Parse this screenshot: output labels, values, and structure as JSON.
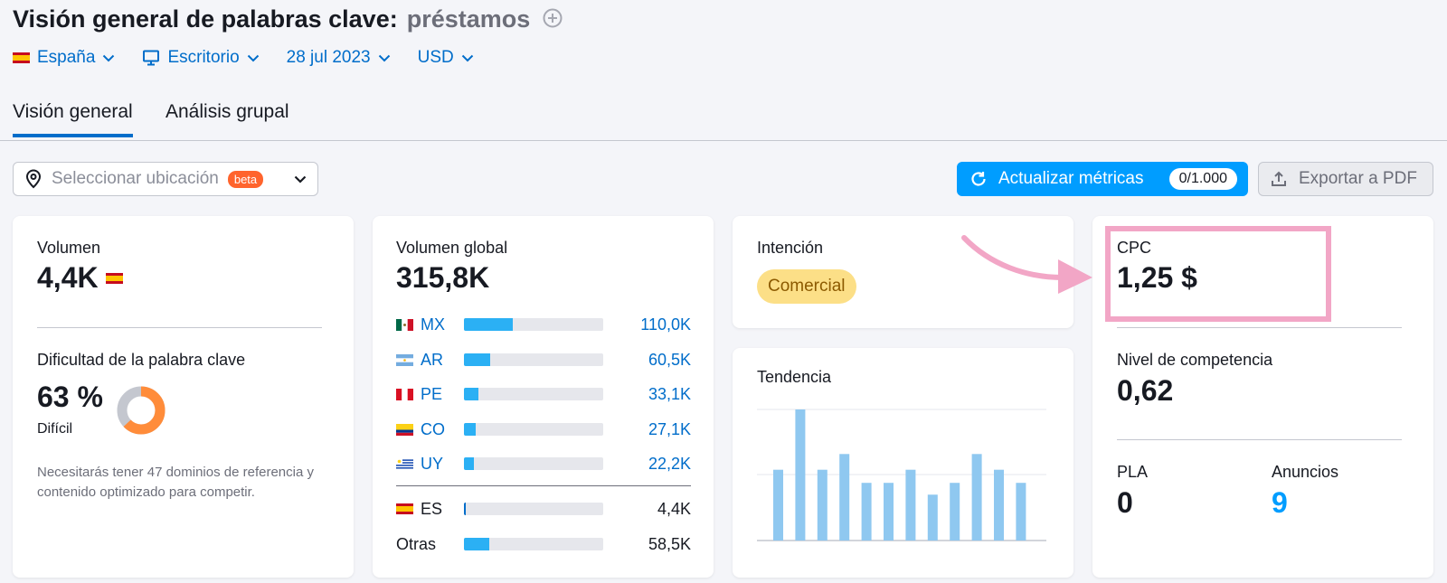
{
  "header": {
    "title": "Visión general de palabras clave:",
    "keyword": "préstamos"
  },
  "filters": {
    "country": "España",
    "device": "Escritorio",
    "date": "28 jul 2023",
    "currency": "USD"
  },
  "tabs": [
    {
      "label": "Visión general",
      "active": true
    },
    {
      "label": "Análisis grupal",
      "active": false
    }
  ],
  "location": {
    "placeholder": "Seleccionar ubicación",
    "badge": "beta"
  },
  "actions": {
    "update_label": "Actualizar métricas",
    "update_count": "0/1.000",
    "export_label": "Exportar a PDF"
  },
  "volume": {
    "label": "Volumen",
    "value": "4,4K"
  },
  "difficulty": {
    "label": "Dificultad de la palabra clave",
    "value": "63 %",
    "level": "Difícil",
    "percent": 63,
    "description": "Necesitarás tener 47 dominios de referencia y contenido optimizado para competir."
  },
  "global_volume": {
    "label": "Volumen global",
    "value": "315,8K",
    "countries": [
      {
        "code": "MX",
        "value": "110,0K",
        "share": 0.35
      },
      {
        "code": "AR",
        "value": "60,5K",
        "share": 0.19
      },
      {
        "code": "PE",
        "value": "33,1K",
        "share": 0.105
      },
      {
        "code": "CO",
        "value": "27,1K",
        "share": 0.085
      },
      {
        "code": "UY",
        "value": "22,2K",
        "share": 0.07
      }
    ],
    "local": {
      "code": "ES",
      "value": "4,4K",
      "share": 0.015
    },
    "other": {
      "label": "Otras",
      "value": "58,5K",
      "share": 0.185
    }
  },
  "intent": {
    "label": "Intención",
    "value": "Comercial"
  },
  "trend": {
    "label": "Tendencia"
  },
  "chart_data": {
    "type": "bar",
    "title": "Tendencia",
    "values": [
      54,
      100,
      54,
      66,
      44,
      44,
      54,
      35,
      44,
      66,
      54,
      44
    ],
    "ylim": [
      0,
      100
    ],
    "grid": true
  },
  "cpc": {
    "label": "CPC",
    "value": "1,25 $"
  },
  "competition": {
    "label": "Nivel de competencia",
    "value": "0,62"
  },
  "pla": {
    "label": "PLA",
    "value": "0"
  },
  "ads": {
    "label": "Anuncios",
    "value": "9"
  },
  "colors": {
    "accent": "#006dca",
    "button": "#009dff",
    "highlight": "#f2a6c6",
    "bar": "#2bb0f4",
    "trend_bar": "#8fc8f0",
    "donut_fill": "#ff8c3a"
  }
}
